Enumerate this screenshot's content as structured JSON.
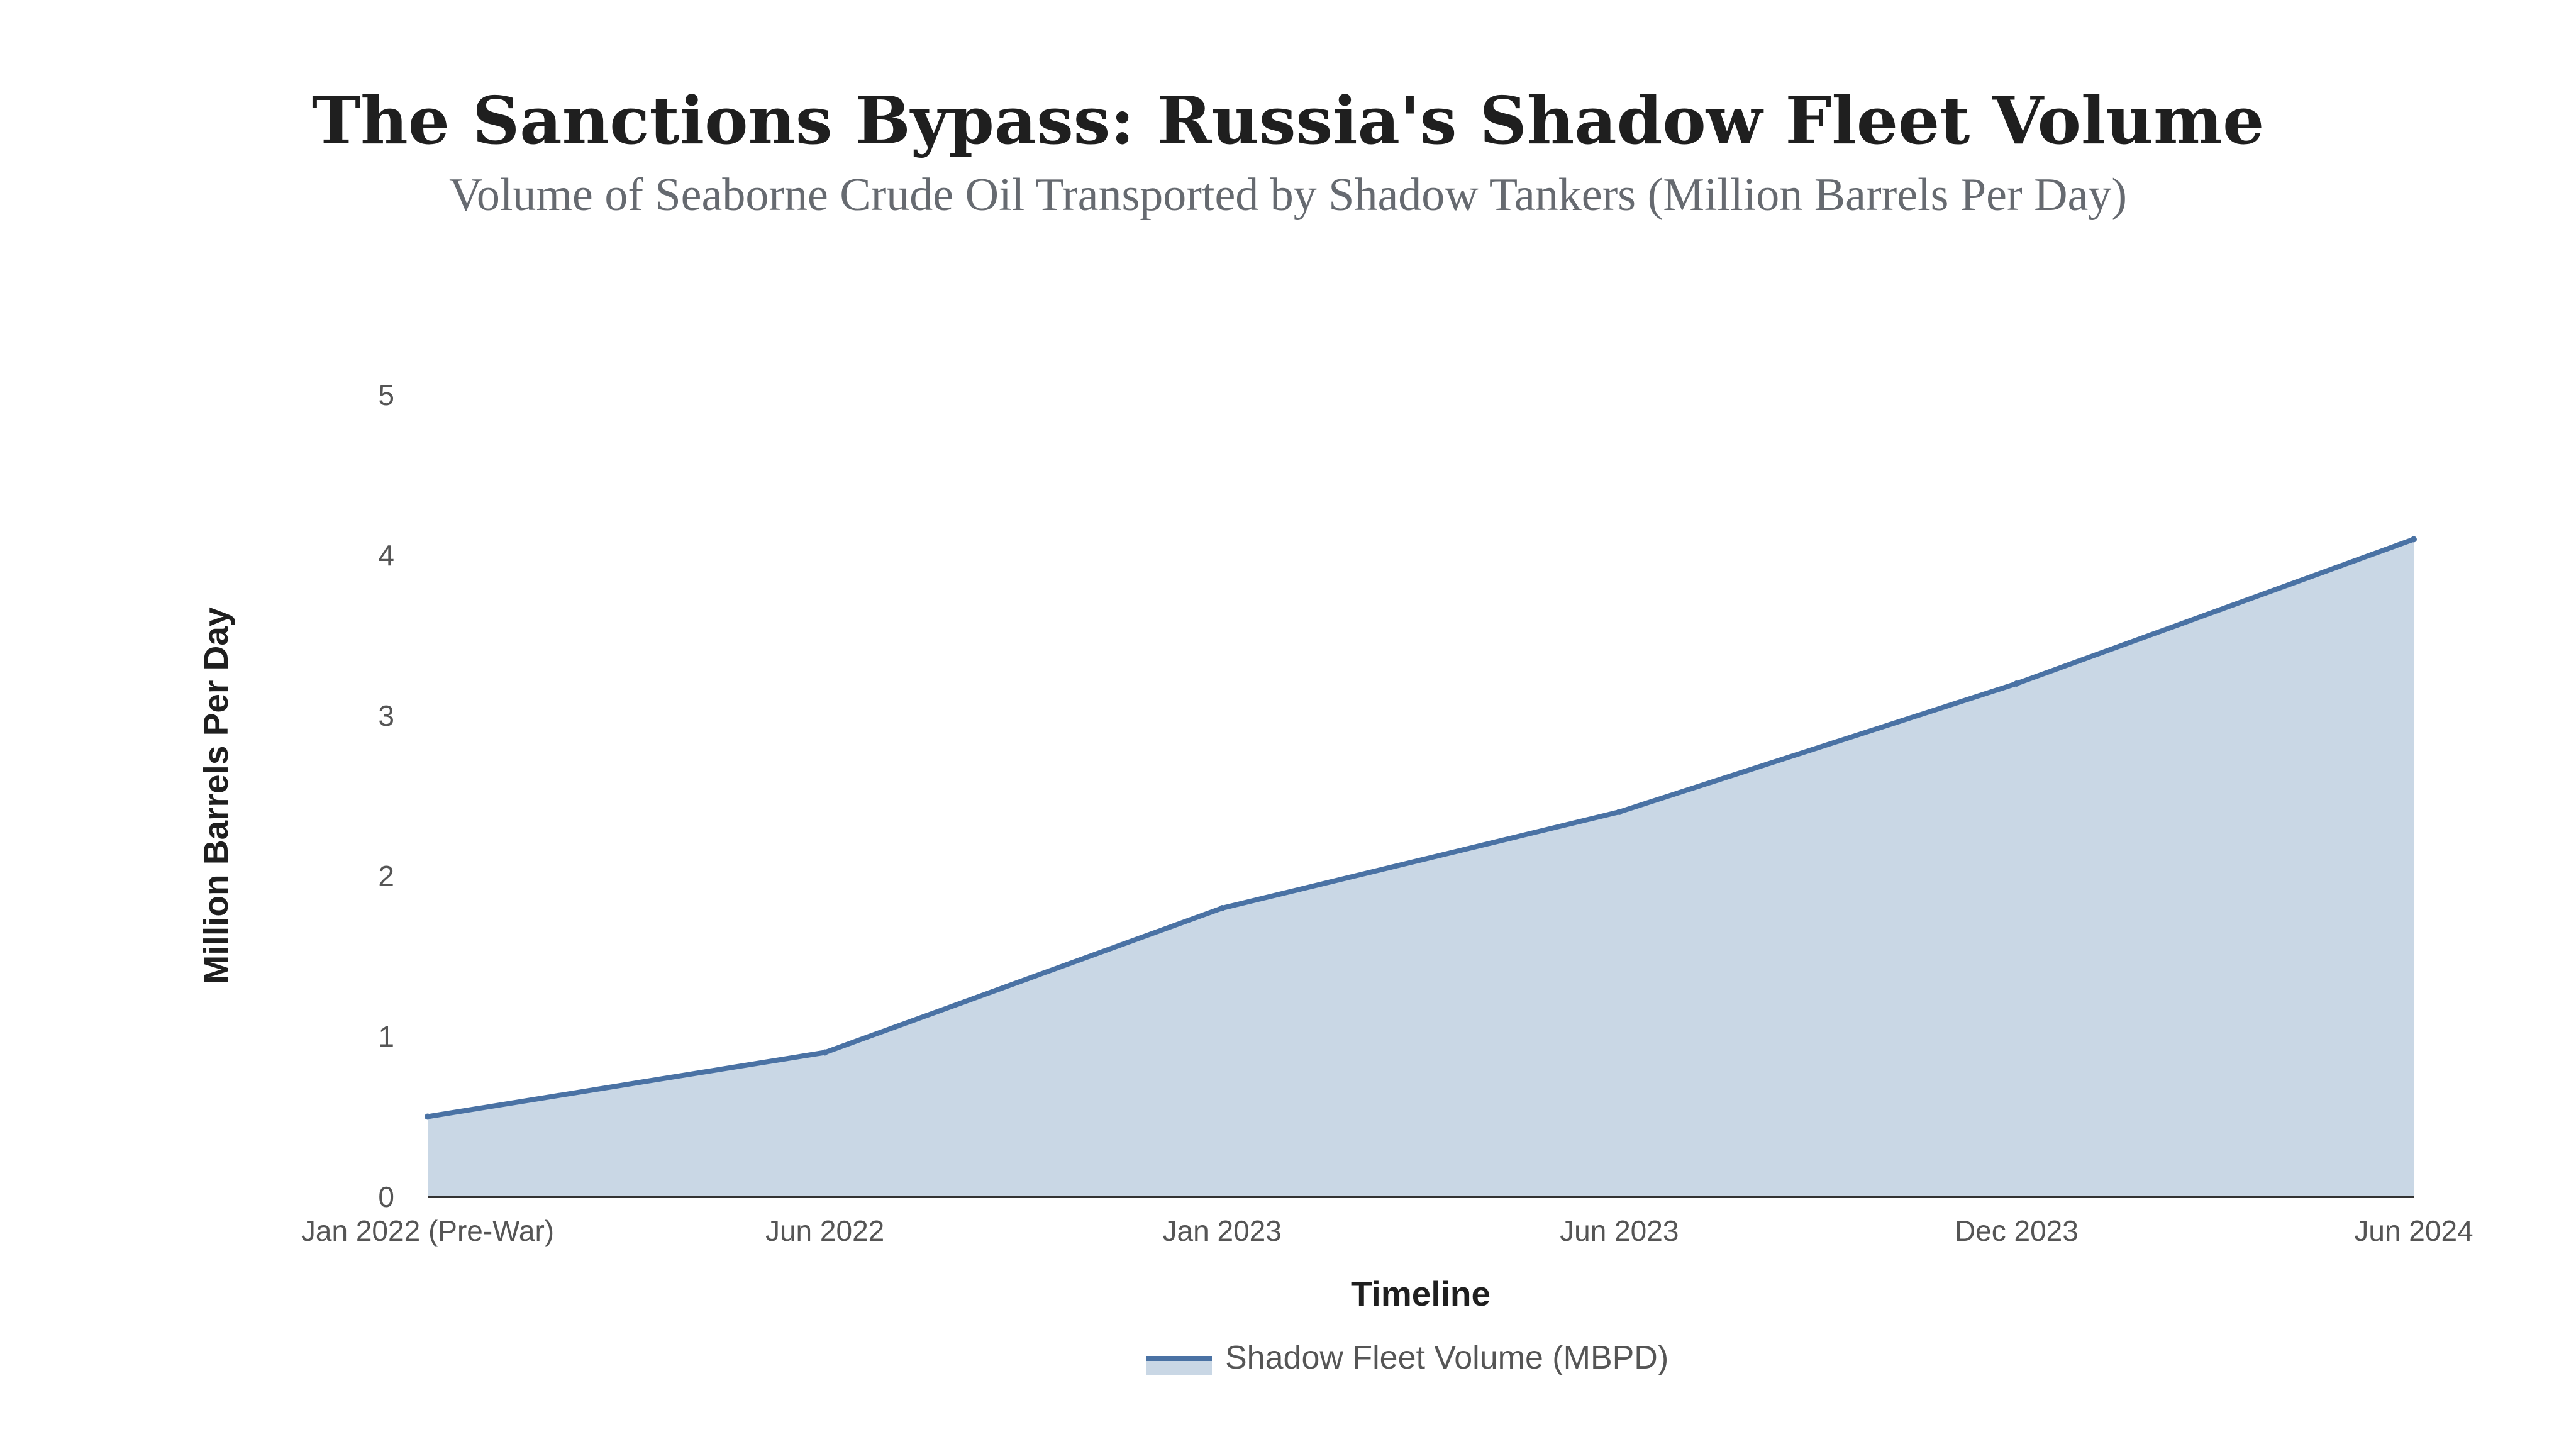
{
  "chart_data": {
    "type": "area",
    "title": "The Sanctions Bypass: Russia's Shadow Fleet Volume",
    "subtitle": "Volume of Seaborne Crude Oil Transported by Shadow Tankers (Million Barrels Per Day)",
    "xlabel": "Timeline",
    "ylabel": "Million Barrels Per Day",
    "categories": [
      "Jan 2022 (Pre-War)",
      "Jun 2022",
      "Jan 2023",
      "Jun 2023",
      "Dec 2023",
      "Jun 2024"
    ],
    "series": [
      {
        "name": "Shadow Fleet Volume (MBPD)",
        "values": [
          0.5,
          0.9,
          1.8,
          2.4,
          3.2,
          4.1
        ],
        "line_color": "#4a72a4",
        "fill_color": "#c9d7e5"
      }
    ],
    "ylim": [
      0,
      5
    ],
    "yticks": [
      0,
      1,
      2,
      3,
      4,
      5
    ],
    "grid": false,
    "legend_position": "bottom-center"
  }
}
